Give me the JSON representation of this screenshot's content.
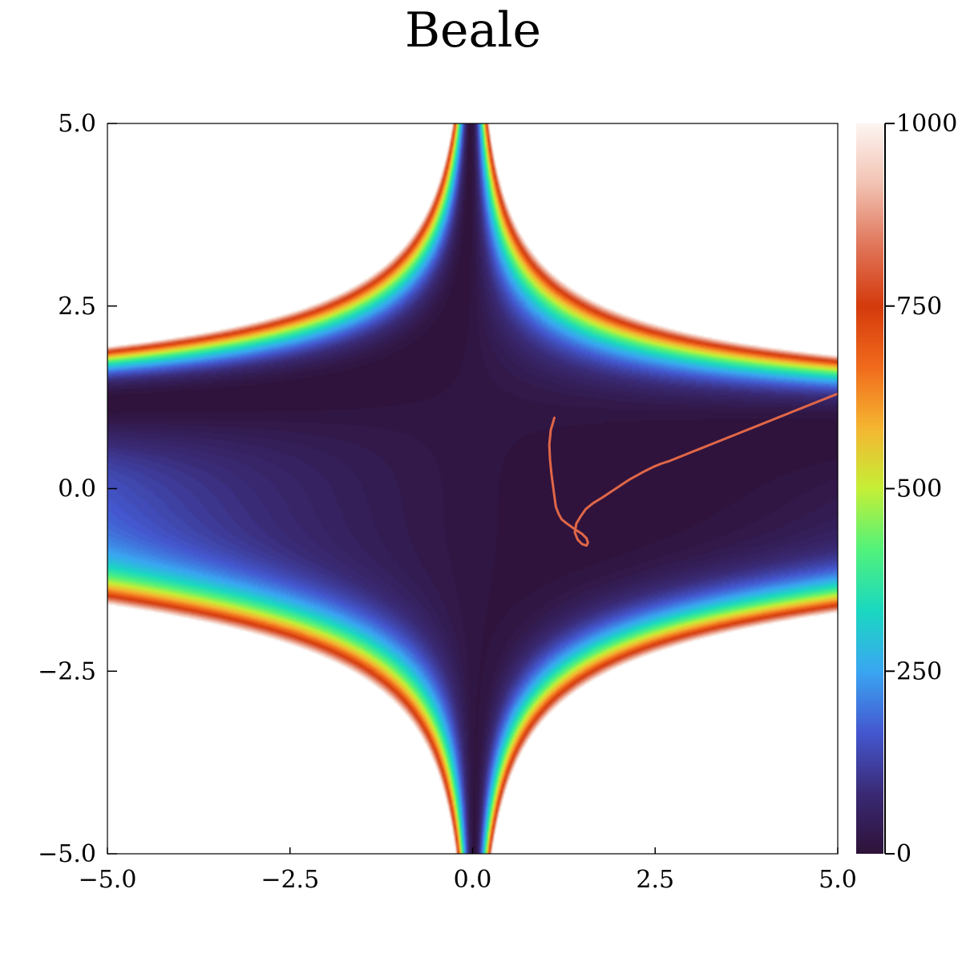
{
  "chart_data": {
    "type": "contour",
    "title": "Beale",
    "function": "(1.5 - x + x*y)^2 + (2.25 - x + x*y^2)^2 + (2.625 - x + x*y^3)^2",
    "xlim": [
      -5.0,
      5.0
    ],
    "ylim": [
      -5.0,
      5.0
    ],
    "xticks": [
      "−5.0",
      "−2.5",
      "0.0",
      "2.5",
      "5.0"
    ],
    "xtick_values": [
      -5.0,
      -2.5,
      0.0,
      2.5,
      5.0
    ],
    "yticks": [
      "−5.0",
      "−2.5",
      "0.0",
      "2.5",
      "5.0"
    ],
    "ytick_values": [
      -5.0,
      -2.5,
      0.0,
      2.5,
      5.0
    ],
    "colorbar": {
      "min": 0,
      "max": 1000,
      "levels": 100,
      "ticks": [
        "0",
        "250",
        "500",
        "750",
        "1000"
      ],
      "tick_values": [
        0,
        250,
        500,
        750,
        1000
      ],
      "colormap": "turbo-to-white",
      "stops": [
        "#2e1238",
        "#3a2a75",
        "#4458d0",
        "#3aa6f2",
        "#1ad8c0",
        "#52f27a",
        "#c5ef36",
        "#f5b531",
        "#f06a1c",
        "#d43a0c",
        "#e0765a",
        "#f2c2b2",
        "#fdf5f2"
      ]
    },
    "path": {
      "color": "#e06748",
      "x": [
        1.12,
        1.1,
        1.07,
        1.05,
        1.06,
        1.08,
        1.1,
        1.12,
        1.14,
        1.18,
        1.22,
        1.28,
        1.35,
        1.42,
        1.5,
        1.56,
        1.58,
        1.56,
        1.5,
        1.44,
        1.4,
        1.42,
        1.48,
        1.55,
        1.65,
        1.78,
        1.9,
        2.02,
        2.14,
        2.25,
        2.36,
        2.48,
        2.58,
        2.7,
        2.8,
        2.9,
        3.0,
        3.1,
        3.2,
        3.3,
        3.4,
        3.5,
        3.6,
        3.7,
        3.8,
        3.9,
        4.0,
        4.1,
        4.2,
        4.3,
        4.4,
        4.5,
        4.6,
        4.7,
        4.8,
        4.9,
        5.0,
        5.1,
        5.2,
        5.3,
        5.4
      ],
      "y": [
        0.97,
        0.9,
        0.8,
        0.6,
        0.4,
        0.2,
        0.05,
        -0.1,
        -0.25,
        -0.35,
        -0.42,
        -0.47,
        -0.52,
        -0.57,
        -0.62,
        -0.68,
        -0.74,
        -0.78,
        -0.76,
        -0.7,
        -0.6,
        -0.48,
        -0.38,
        -0.28,
        -0.2,
        -0.12,
        -0.04,
        0.04,
        0.12,
        0.18,
        0.24,
        0.3,
        0.34,
        0.38,
        0.42,
        0.46,
        0.5,
        0.54,
        0.58,
        0.62,
        0.66,
        0.7,
        0.74,
        0.78,
        0.82,
        0.86,
        0.9,
        0.94,
        0.98,
        1.02,
        1.06,
        1.1,
        1.14,
        1.18,
        1.22,
        1.26,
        1.3,
        1.34,
        1.38,
        1.42,
        1.46
      ]
    }
  }
}
